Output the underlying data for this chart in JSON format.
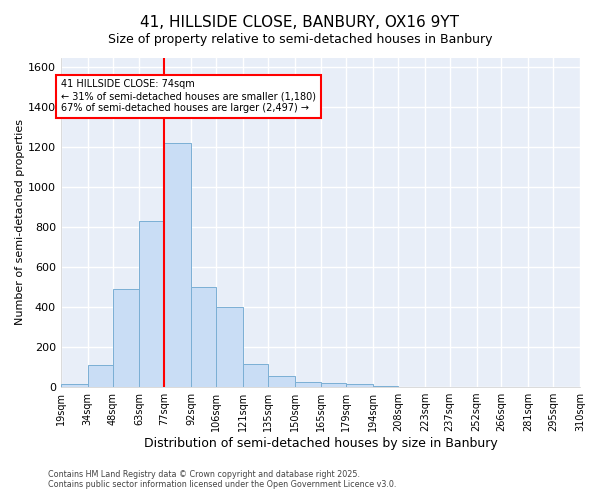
{
  "title": "41, HILLSIDE CLOSE, BANBURY, OX16 9YT",
  "subtitle": "Size of property relative to semi-detached houses in Banbury",
  "xlabel": "Distribution of semi-detached houses by size in Banbury",
  "ylabel": "Number of semi-detached properties",
  "bins": [
    "19sqm",
    "34sqm",
    "48sqm",
    "63sqm",
    "77sqm",
    "92sqm",
    "106sqm",
    "121sqm",
    "135sqm",
    "150sqm",
    "165sqm",
    "179sqm",
    "194sqm",
    "208sqm",
    "223sqm",
    "237sqm",
    "252sqm",
    "266sqm",
    "281sqm",
    "295sqm",
    "310sqm"
  ],
  "values": [
    15,
    110,
    490,
    830,
    1220,
    500,
    400,
    115,
    55,
    25,
    20,
    15,
    5,
    0,
    0,
    0,
    0,
    0,
    0,
    0
  ],
  "bar_color": "#c9ddf5",
  "bar_edge_color": "#7bafd4",
  "vline_x": 77,
  "vline_color": "red",
  "annotation_text": "41 HILLSIDE CLOSE: 74sqm\n← 31% of semi-detached houses are smaller (1,180)\n67% of semi-detached houses are larger (2,497) →",
  "annotation_box_color": "white",
  "annotation_box_edge": "red",
  "footer_line1": "Contains HM Land Registry data © Crown copyright and database right 2025.",
  "footer_line2": "Contains public sector information licensed under the Open Government Licence v3.0.",
  "ylim": [
    0,
    1650
  ],
  "yticks": [
    0,
    200,
    400,
    600,
    800,
    1000,
    1200,
    1400,
    1600
  ],
  "fig_bg_color": "#ffffff",
  "plot_bg_color": "#e8eef8",
  "grid_color": "#ffffff",
  "title_fontsize": 11,
  "subtitle_fontsize": 9
}
